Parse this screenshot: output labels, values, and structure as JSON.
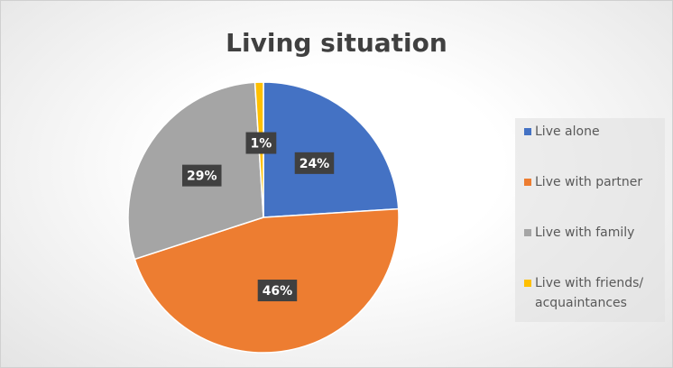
{
  "chart_data": {
    "type": "pie",
    "title": "Living situation",
    "categories": [
      "Live alone",
      "Live with partner",
      "Live with family",
      "Live with friends/ acquaintances"
    ],
    "values": [
      24,
      46,
      29,
      1
    ],
    "value_labels": [
      "24%",
      "46%",
      "29%",
      "1%"
    ],
    "colors": [
      "#4472c4",
      "#ed7d31",
      "#a5a5a5",
      "#ffc000"
    ],
    "legend": "right"
  }
}
